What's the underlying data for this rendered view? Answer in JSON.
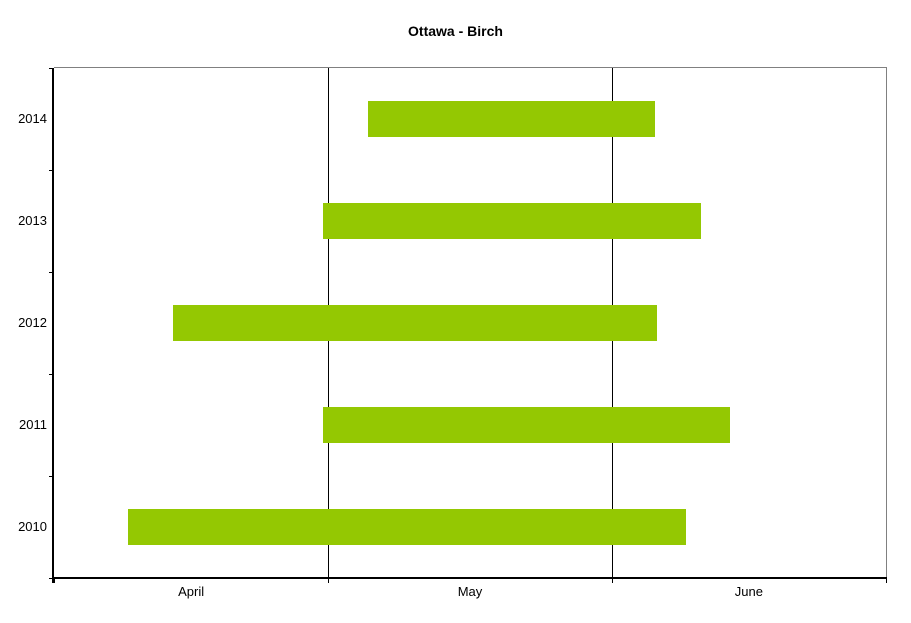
{
  "chart_data": {
    "type": "bar",
    "subtype": "horizontal_range_bar",
    "title": "Ottawa - Birch",
    "orientation": "horizontal",
    "categories": [
      "2014",
      "2013",
      "2012",
      "2011",
      "2010"
    ],
    "x_axis": {
      "unit": "days since April 1",
      "range": [
        0,
        91
      ],
      "month_labels": [
        {
          "label": "April",
          "start_day": 0,
          "end_day": 30
        },
        {
          "label": "May",
          "start_day": 30,
          "end_day": 61
        },
        {
          "label": "June",
          "start_day": 61,
          "end_day": 91
        }
      ],
      "gridline_days": [
        30,
        61
      ],
      "tick_days": [
        0,
        30,
        61,
        91
      ]
    },
    "y_axis": {
      "label": "",
      "band_boundary_ticks": true
    },
    "series": [
      {
        "year": "2014",
        "start_day": 34.3,
        "end_day": 65.7,
        "start_date": "May 5",
        "end_date": "Jun 6"
      },
      {
        "year": "2013",
        "start_day": 29.4,
        "end_day": 70.8,
        "start_date": "Apr 30",
        "end_date": "Jun 11"
      },
      {
        "year": "2012",
        "start_day": 13.0,
        "end_day": 66.0,
        "start_date": "Apr 14",
        "end_date": "Jun 6"
      },
      {
        "year": "2011",
        "start_day": 29.4,
        "end_day": 73.9,
        "start_date": "Apr 30",
        "end_date": "Jun 14"
      },
      {
        "year": "2010",
        "start_day": 8.1,
        "end_day": 69.1,
        "start_date": "Apr 9",
        "end_date": "Jun 9"
      }
    ],
    "legend": "none",
    "grid": "vertical gridlines at month boundaries",
    "colors": {
      "bar": "#94C802",
      "axis": "#000000",
      "gridline": "#000000",
      "plot_border_top_right": "#808080",
      "text": "#000000",
      "background": "#FFFFFF"
    }
  }
}
